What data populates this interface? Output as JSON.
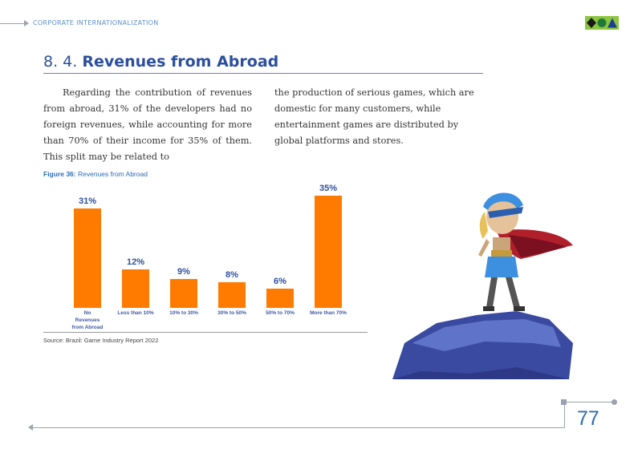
{
  "header": {
    "section_label": "CORPORATE INTERNATIONALIZATION"
  },
  "colors": {
    "accent_blue": "#2b4f9e",
    "bar_orange": "#ff7b00",
    "logo_green": "#8cc63f"
  },
  "logo_icons": [
    "diamond-icon",
    "circle-icon",
    "triangle-icon"
  ],
  "section": {
    "number": "8. 4.",
    "title": "Revenues from Abroad"
  },
  "body": {
    "col1": "Regarding the contribution of revenues from abroad, 31% of the developers had no foreign revenues, while accounting for more than 70% of their income for 35% of them. This split may be related to",
    "col2": "the production of serious games, which are domestic for many customers, while entertainment games are distributed by global platforms and stores."
  },
  "figure": {
    "label": "Figure 36:",
    "caption": "Revenues from Abroad",
    "source": "Source: Brazil: Game Industry Report 2022"
  },
  "chart_data": {
    "type": "bar",
    "categories": [
      [
        "No",
        "Revenues",
        "from Abroad"
      ],
      [
        "Less than 10%"
      ],
      [
        "10% to 30%"
      ],
      [
        "30% to 50%"
      ],
      [
        "50% to 70%"
      ],
      [
        "More than 70%"
      ]
    ],
    "values": [
      31,
      12,
      9,
      8,
      6,
      35
    ],
    "data_labels": [
      "31%",
      "12%",
      "9%",
      "8%",
      "6%",
      "35%"
    ],
    "title": "",
    "xlabel": "",
    "ylabel": "",
    "ylim": [
      0,
      35
    ],
    "grid": false,
    "legend": "none"
  },
  "footer": {
    "page_number": "77"
  }
}
